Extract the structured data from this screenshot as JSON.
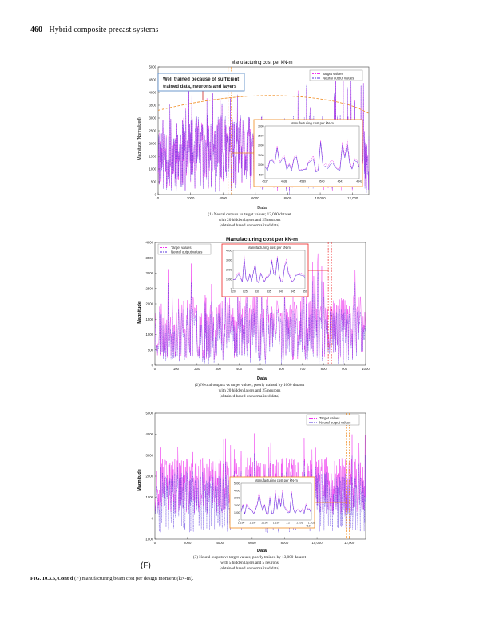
{
  "page": {
    "number": "460",
    "running_title": "Hybrid composite precast systems"
  },
  "chart_data": [
    {
      "type": "line",
      "title": "Manufacturing cost per kN-m",
      "xlabel": "Data",
      "ylabel": "Magnitude (Normalized)",
      "xlim": [
        0,
        13000
      ],
      "ylim": [
        0,
        5000
      ],
      "xticks": [
        "0",
        "2000",
        "4000",
        "6000",
        "8000",
        "10,000",
        "12,000"
      ],
      "yticks": [
        "0",
        "500",
        "1000",
        "1500",
        "2000",
        "2500",
        "3000",
        "3500",
        "4000",
        "4500",
        "5000"
      ],
      "legend": "top-right",
      "annotation": "Well trained because of sufficient trained data, neurons and layers",
      "series": [
        {
          "name": "Target values",
          "color": "#ee33ee",
          "n": 13000,
          "typical_max": 3200,
          "peak": 4500
        },
        {
          "name": "Neural output values",
          "color": "#5533dd",
          "n": 13000,
          "typical_max": 3200,
          "peak": 4500
        }
      ],
      "inset": {
        "title": "Manufacturing cost per kN-m",
        "xticks": [
          "4537",
          "4538",
          "4539",
          "4540",
          "4541",
          "4542"
        ],
        "yticks": [
          "500",
          "1000",
          "1500",
          "2000",
          "2500",
          "3000"
        ],
        "ylim": [
          300,
          3000
        ]
      },
      "caption": [
        "(1) Neural outputs vs target values; 13,000 dataset",
        "with 20 hidden layers and 25 neurons",
        "(obtained based on normalized data)"
      ]
    },
    {
      "type": "line",
      "title": "Manufacturing cost per kN-m",
      "xlabel": "Data",
      "ylabel": "Magnitude",
      "xlim": [
        0,
        1000
      ],
      "ylim": [
        0,
        4000
      ],
      "xticks": [
        "0",
        "100",
        "200",
        "300",
        "400",
        "500",
        "600",
        "700",
        "800",
        "900",
        "1000"
      ],
      "yticks": [
        "0",
        "500",
        "1000",
        "1500",
        "2000",
        "2500",
        "3000",
        "3500",
        "4000"
      ],
      "legend": "top-left",
      "series": [
        {
          "name": "Target values",
          "color": "#ee33ee",
          "n": 1000,
          "typical_max": 2400,
          "peak": 3700
        },
        {
          "name": "Neural output values",
          "color": "#5533dd",
          "n": 1000,
          "typical_max": 2000,
          "peak": 3200
        }
      ],
      "inset": {
        "title": "Manufacturing cost per kN-m",
        "xticks": [
          "820",
          "825",
          "830",
          "835",
          "840",
          "845",
          "850"
        ],
        "yticks": [
          "0",
          "1000",
          "2000",
          "3000",
          "4000"
        ],
        "ylim": [
          0,
          4000
        ]
      },
      "caption": [
        "(2) Neural outputs vs target values; poorly trained by 1000 dataset",
        "with 20 hidden layers and 25 neurons",
        "(obtained based on normalized data)"
      ]
    },
    {
      "type": "line",
      "title": "",
      "xlabel": "Data",
      "ylabel": "Magnitude",
      "xlim": [
        0,
        13000
      ],
      "ylim": [
        -1000,
        5000
      ],
      "xticks": [
        "0",
        "2000",
        "4000",
        "6000",
        "8000",
        "10,000",
        "12,000"
      ],
      "yticks": [
        "-1000",
        "0",
        "1000",
        "2000",
        "3000",
        "4000",
        "5000"
      ],
      "legend": "top-right",
      "series": [
        {
          "name": "Target values",
          "color": "#ee33ee",
          "n": 13000,
          "typical_max": 3000,
          "peak": 4200
        },
        {
          "name": "Neural output values",
          "color": "#5533dd",
          "n": 13000,
          "typical_max": 2200,
          "peak": 2800
        }
      ],
      "inset": {
        "title": "Manufacturing cost per kN-m",
        "xticks": [
          "1.196",
          "1.197",
          "1.198",
          "1.199",
          "1.2",
          "1.201",
          "1.202"
        ],
        "xmultiplier": "×10⁴",
        "yticks": [
          "0",
          "1000",
          "2000",
          "3000",
          "4000",
          "5000"
        ],
        "ylim": [
          0,
          5000
        ]
      },
      "caption": [
        "(3) Neural outputs vs target values; poorly trained by 13,000 dataset",
        "with 5 hidden layers and 5 neurons",
        "(obtained based on normalized data)"
      ]
    }
  ],
  "figure": {
    "panel_label": "(F)",
    "label": "FIG. 10.3.6, Cont'd",
    "caption": "(F) manufacturing beam cost per design moment (kN-m)."
  }
}
